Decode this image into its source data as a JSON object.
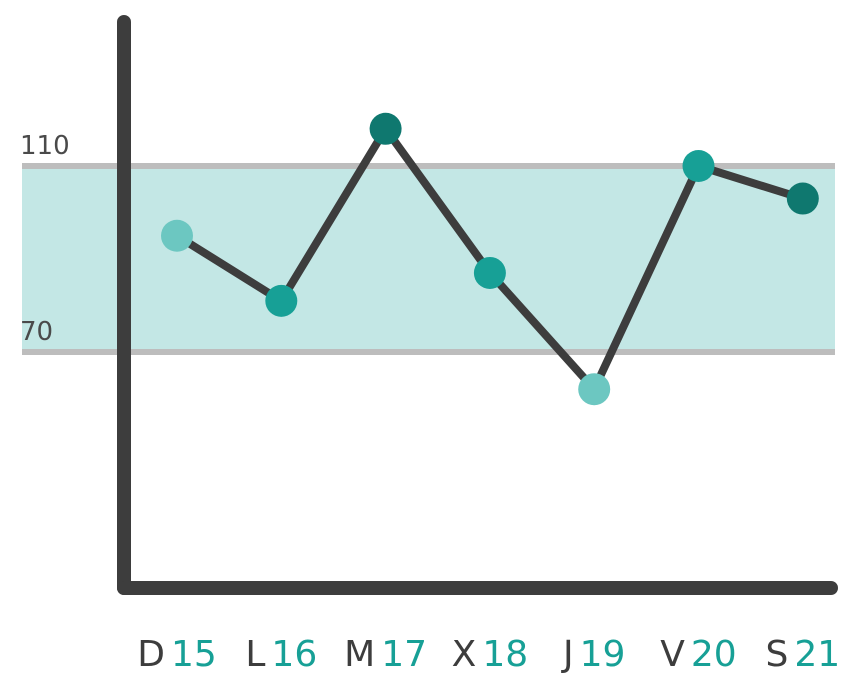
{
  "chart_data": {
    "type": "line",
    "reference_band": {
      "low": 70,
      "high": 110,
      "low_label": "70",
      "high_label": "110"
    },
    "categories": [
      {
        "letter": "D",
        "number": "15"
      },
      {
        "letter": "L",
        "number": "16"
      },
      {
        "letter": "M",
        "number": "17"
      },
      {
        "letter": "X",
        "number": "18"
      },
      {
        "letter": "J",
        "number": "19"
      },
      {
        "letter": "V",
        "number": "20"
      },
      {
        "letter": "S",
        "number": "21"
      }
    ],
    "values": [
      95,
      81,
      118,
      87,
      62,
      110,
      103
    ],
    "point_levels": [
      "light",
      "mid",
      "dark",
      "mid",
      "light",
      "mid",
      "dark"
    ],
    "colors": {
      "band": "#c3e7e5",
      "band_lines": "#bdbdbd",
      "axis": "#3d3d3d",
      "line": "#3d3d3d",
      "point_light": "#6cc7c1",
      "point_mid": "#17a096",
      "point_dark": "#0f786f",
      "day_number": "#17a096"
    }
  }
}
